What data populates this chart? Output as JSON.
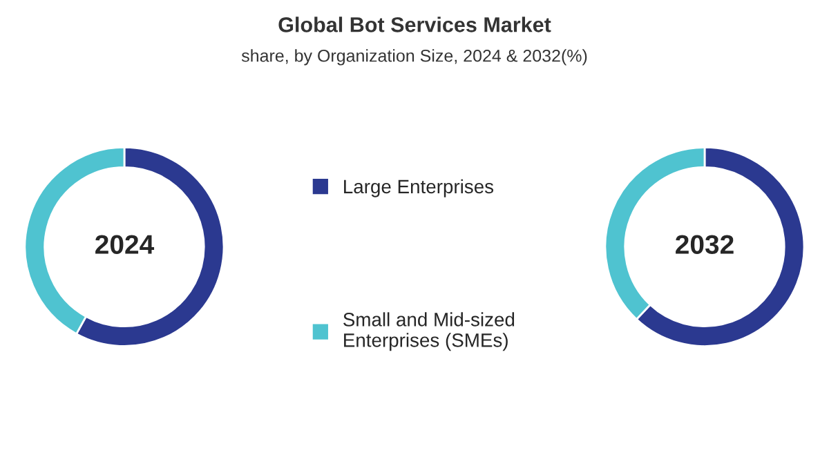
{
  "chart_data": {
    "type": "donut",
    "title": "Global Bot Services Market",
    "subtitle": "share, by Organization Size, 2024 & 2032(%)",
    "categories": [
      "Large Enterprises",
      "Small and Mid-sized\nEnterprises (SMEs)"
    ],
    "colors": [
      "#2b3990",
      "#4fc3d0"
    ],
    "series": [
      {
        "name": "2024",
        "values": [
          58,
          42
        ]
      },
      {
        "name": "2032",
        "values": [
          62,
          38
        ]
      }
    ],
    "legend": "center"
  }
}
